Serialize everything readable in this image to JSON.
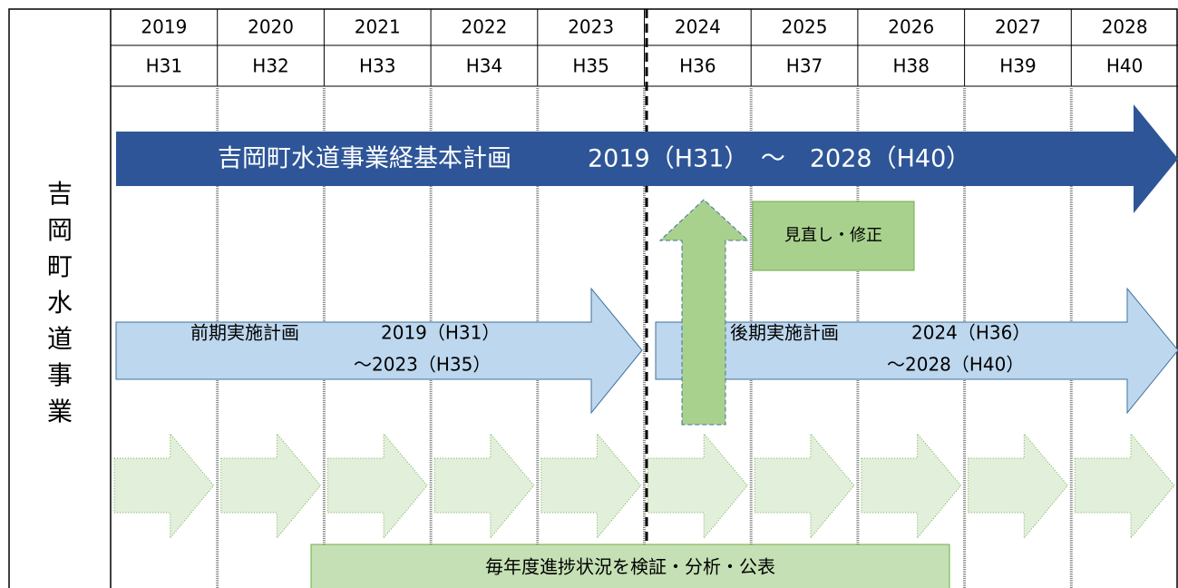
{
  "side_label": "吉岡町水道事業",
  "years": [
    "2019",
    "2020",
    "2021",
    "2022",
    "2023",
    "2024",
    "2025",
    "2026",
    "2027",
    "2028"
  ],
  "eras": [
    "H31",
    "H32",
    "H33",
    "H34",
    "H35",
    "H36",
    "H37",
    "H38",
    "H39",
    "H40"
  ],
  "main_plan": {
    "title": "吉岡町水道事業経基本計画",
    "period": "2019（H31）　～　2028（H40）"
  },
  "early_plan": {
    "title": "前期実施計画",
    "start": "2019（H31）",
    "end": "～2023（H35）"
  },
  "late_plan": {
    "title": "後期実施計画",
    "start": "2024（H36）",
    "end": "～2028（H40）"
  },
  "review": "見直し・修正",
  "annual": "毎年度進捗状況を検証・分析・公表"
}
